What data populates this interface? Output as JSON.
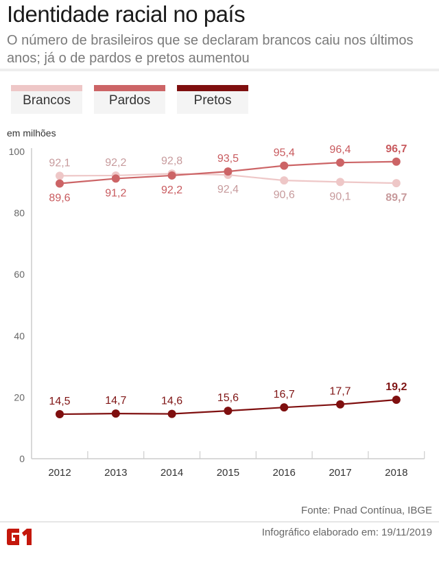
{
  "header": {
    "title": "Identidade racial no país",
    "subtitle": "O número de brasileiros que se declaram brancos caiu nos últimos anos; já o de pardos e pretos aumentou"
  },
  "legend": [
    {
      "label": "Brancos",
      "color": "#eec7c7"
    },
    {
      "label": "Pardos",
      "color": "#cc6466"
    },
    {
      "label": "Pretos",
      "color": "#7f0f0f"
    }
  ],
  "footer": {
    "source": "Fonte: Pnad Contínua, IBGE",
    "credit": "Infográfico elaborado em: 19/11/2019",
    "logo_text": "G1"
  },
  "chart_data": {
    "type": "line",
    "title": "Identidade racial no país",
    "ylabel": "em milhões",
    "xlabel": "",
    "ylim": [
      0,
      100
    ],
    "yticks": [
      0,
      20,
      40,
      60,
      80,
      100
    ],
    "grid": false,
    "x": [
      "2012",
      "2013",
      "2014",
      "2015",
      "2016",
      "2017",
      "2018"
    ],
    "series": [
      {
        "name": "Brancos",
        "color": "#eec7c7",
        "label_color": "#c79a9c",
        "values": [
          92.1,
          92.2,
          92.8,
          92.4,
          90.6,
          90.1,
          89.7
        ],
        "labels": [
          "92,1",
          "92,2",
          "92,8",
          "92,4",
          "90,6",
          "90,1",
          "89,7"
        ],
        "label_pos": [
          "above",
          "above",
          "above",
          "below",
          "below",
          "below",
          "below"
        ]
      },
      {
        "name": "Pardos",
        "color": "#cc6466",
        "label_color": "#c85a5e",
        "values": [
          89.6,
          91.2,
          92.2,
          93.5,
          95.4,
          96.4,
          96.7
        ],
        "labels": [
          "89,6",
          "91,2",
          "92,2",
          "93,5",
          "95,4",
          "96,4",
          "96,7"
        ],
        "label_pos": [
          "below",
          "below",
          "below",
          "above",
          "above",
          "above",
          "above"
        ]
      },
      {
        "name": "Pretos",
        "color": "#7f0f0f",
        "label_color": "#7f1414",
        "values": [
          14.5,
          14.7,
          14.6,
          15.6,
          16.7,
          17.7,
          19.2
        ],
        "labels": [
          "14,5",
          "14,7",
          "14,6",
          "15,6",
          "16,7",
          "17,7",
          "19,2"
        ],
        "label_pos": [
          "above",
          "above",
          "above",
          "above",
          "above",
          "above",
          "above"
        ]
      }
    ]
  }
}
